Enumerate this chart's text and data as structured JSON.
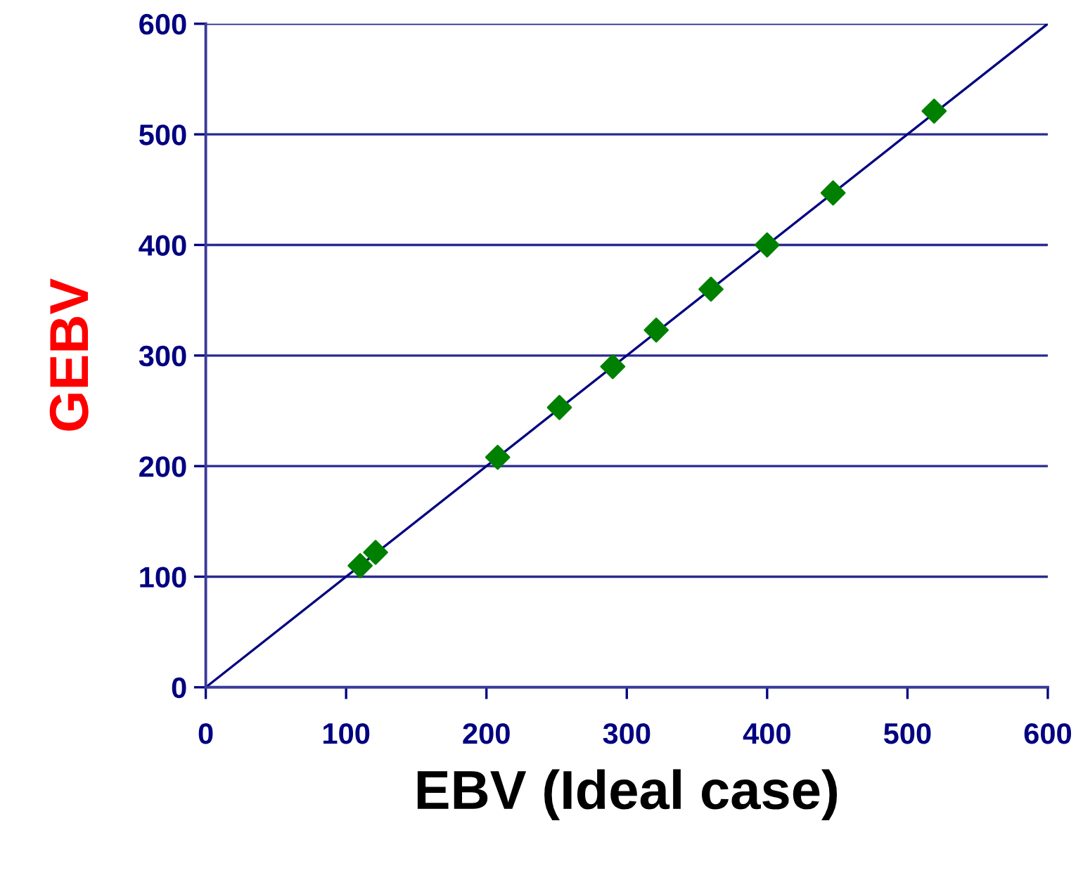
{
  "chart_data": {
    "type": "scatter",
    "xlabel": "EBV (Ideal case)",
    "ylabel": "GEBV",
    "series": [
      {
        "type": "line",
        "color": "#000080",
        "x": [
          0,
          600
        ],
        "values": [
          0,
          600
        ],
        "marker": "none",
        "line_style": "solid"
      },
      {
        "color": "#008000",
        "marker": "diamond",
        "x": [
          110,
          121,
          208,
          252,
          290,
          321,
          360,
          400,
          447,
          519
        ],
        "values": [
          110,
          122,
          208,
          253,
          290,
          323,
          360,
          400,
          447,
          521
        ]
      }
    ],
    "xlim": [
      0,
      600
    ],
    "ylim": [
      0,
      600
    ],
    "xticks": [
      0,
      100,
      200,
      300,
      400,
      500,
      600
    ],
    "yticks": [
      0,
      100,
      200,
      300,
      400,
      500,
      600
    ],
    "grid": "y",
    "legend": false
  }
}
